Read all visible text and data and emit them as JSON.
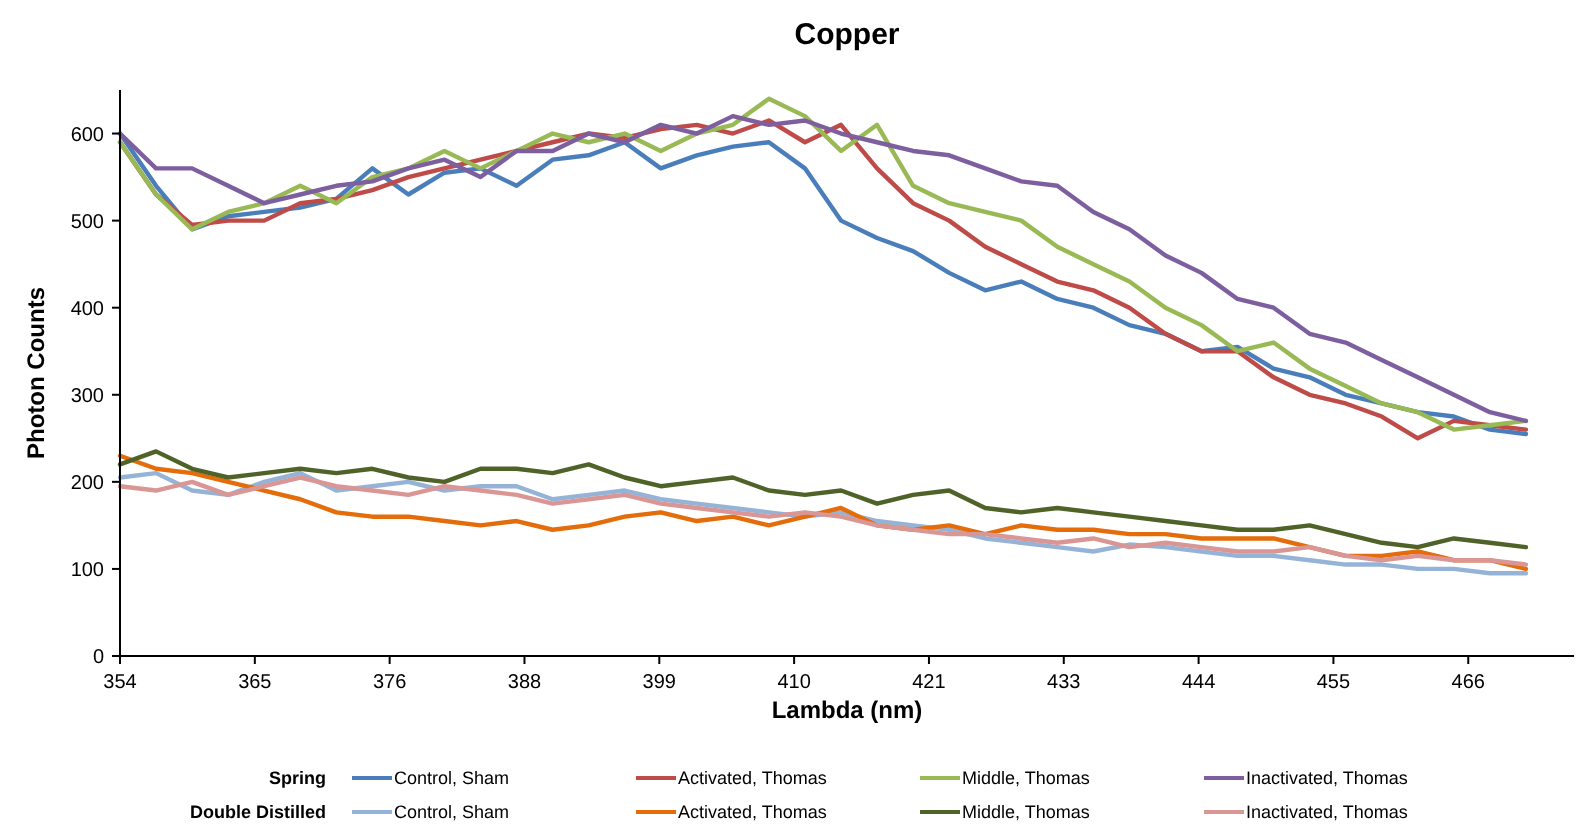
{
  "chart_data": {
    "type": "line",
    "title": "Copper",
    "xlabel": "Lambda (nm)",
    "ylabel": "Photon Counts",
    "x": [
      354,
      357,
      360,
      363,
      366,
      369,
      372,
      375,
      378,
      381,
      384,
      387,
      390,
      393,
      396,
      399,
      402,
      405,
      408,
      411,
      414,
      417,
      420,
      423,
      426,
      429,
      432,
      435,
      438,
      441,
      444,
      447,
      450,
      453,
      456,
      459,
      462,
      465,
      468,
      471
    ],
    "xlim": [
      354,
      475
    ],
    "xticks": [
      {
        "value": 354,
        "label": "354"
      },
      {
        "value": 365.22,
        "label": "365"
      },
      {
        "value": 376.44,
        "label": "376"
      },
      {
        "value": 387.66,
        "label": "388"
      },
      {
        "value": 398.88,
        "label": "399"
      },
      {
        "value": 410.1,
        "label": "410"
      },
      {
        "value": 421.32,
        "label": "421"
      },
      {
        "value": 432.54,
        "label": "433"
      },
      {
        "value": 443.76,
        "label": "444"
      },
      {
        "value": 454.98,
        "label": "455"
      },
      {
        "value": 466.2,
        "label": "466"
      }
    ],
    "ylim": [
      0,
      650
    ],
    "yticks": [
      0,
      100,
      200,
      300,
      400,
      500,
      600
    ],
    "grid": false,
    "legend": "bottom",
    "marker": "none",
    "line_style": "solid",
    "annotations": [
      "Spring",
      "Double Distilled"
    ],
    "series": [
      {
        "name": "Control, Sham",
        "color": "#4a7ebb",
        "values": [
          600,
          540,
          490,
          505,
          510,
          515,
          525,
          560,
          530,
          555,
          560,
          540,
          570,
          575,
          590,
          560,
          575,
          585,
          590,
          560,
          500,
          480,
          465,
          440,
          420,
          430,
          410,
          400,
          380,
          370,
          350,
          355,
          330,
          320,
          300,
          290,
          280,
          275,
          260,
          255
        ]
      },
      {
        "name": "Activated, Thomas",
        "color": "#be4b48",
        "values": [
          590,
          530,
          495,
          500,
          500,
          520,
          525,
          535,
          550,
          560,
          570,
          580,
          590,
          600,
          595,
          605,
          610,
          600,
          615,
          590,
          610,
          560,
          520,
          500,
          470,
          450,
          430,
          420,
          400,
          370,
          350,
          350,
          320,
          300,
          290,
          275,
          250,
          270,
          265,
          260
        ]
      },
      {
        "name": "Middle, Thomas",
        "color": "#98b954",
        "values": [
          590,
          530,
          490,
          510,
          520,
          540,
          520,
          550,
          560,
          580,
          560,
          580,
          600,
          590,
          600,
          580,
          600,
          610,
          640,
          620,
          580,
          610,
          540,
          520,
          510,
          500,
          470,
          450,
          430,
          400,
          380,
          350,
          360,
          330,
          310,
          290,
          280,
          260,
          265,
          270
        ]
      },
      {
        "name": "Inactivated, Thomas",
        "color": "#7d5fa0",
        "values": [
          600,
          560,
          560,
          540,
          520,
          530,
          540,
          545,
          560,
          570,
          550,
          580,
          580,
          600,
          590,
          610,
          600,
          620,
          610,
          615,
          600,
          590,
          580,
          575,
          560,
          545,
          540,
          510,
          490,
          460,
          440,
          410,
          400,
          370,
          360,
          340,
          320,
          300,
          280,
          270
        ]
      },
      {
        "name": "Control, Sham",
        "color": "#95b3d7",
        "values": [
          205,
          210,
          190,
          185,
          200,
          210,
          190,
          195,
          200,
          190,
          195,
          195,
          180,
          185,
          190,
          180,
          175,
          170,
          165,
          160,
          165,
          155,
          150,
          145,
          135,
          130,
          125,
          120,
          128,
          125,
          120,
          115,
          115,
          110,
          105,
          105,
          100,
          100,
          95,
          95
        ]
      },
      {
        "name": "Activated, Thomas",
        "color": "#e46c0a",
        "values": [
          230,
          215,
          210,
          200,
          190,
          180,
          165,
          160,
          160,
          155,
          150,
          155,
          145,
          150,
          160,
          165,
          155,
          160,
          150,
          160,
          170,
          150,
          145,
          150,
          140,
          150,
          145,
          145,
          140,
          140,
          135,
          135,
          135,
          125,
          115,
          115,
          120,
          110,
          110,
          100
        ]
      },
      {
        "name": "Middle, Thomas",
        "color": "#4f6228",
        "values": [
          220,
          235,
          215,
          205,
          210,
          215,
          210,
          215,
          205,
          200,
          215,
          215,
          210,
          220,
          205,
          195,
          200,
          205,
          190,
          185,
          190,
          175,
          185,
          190,
          170,
          165,
          170,
          165,
          160,
          155,
          150,
          145,
          145,
          150,
          140,
          130,
          125,
          135,
          130,
          125
        ]
      },
      {
        "name": "Inactivated, Thomas",
        "color": "#d99694",
        "values": [
          195,
          190,
          200,
          185,
          195,
          205,
          195,
          190,
          185,
          195,
          190,
          185,
          175,
          180,
          185,
          175,
          170,
          165,
          160,
          165,
          160,
          150,
          145,
          140,
          140,
          135,
          130,
          135,
          125,
          130,
          125,
          120,
          120,
          125,
          115,
          110,
          115,
          110,
          110,
          105
        ]
      }
    ]
  }
}
